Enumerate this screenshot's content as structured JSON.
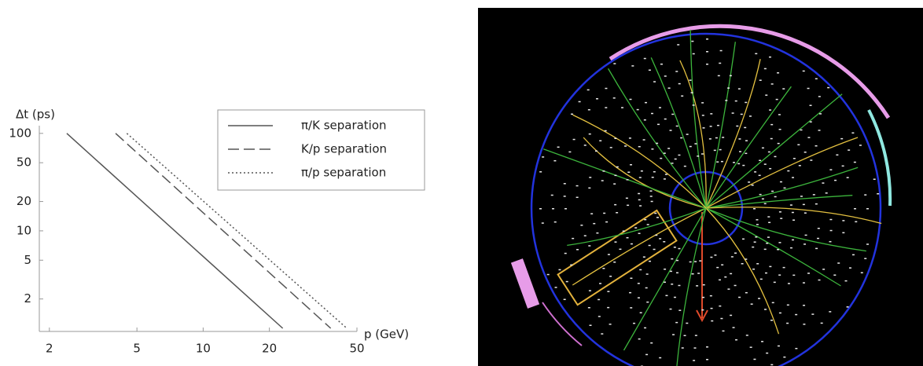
{
  "chart_data": {
    "type": "line",
    "xlabel": "p (GeV)",
    "ylabel": "Δt (ps)",
    "xscale": "log",
    "yscale": "log",
    "xlim": [
      1.8,
      50
    ],
    "ylim": [
      1,
      120
    ],
    "xticks": [
      2,
      5,
      10,
      20,
      50
    ],
    "yticks": [
      2,
      5,
      10,
      20,
      50,
      100
    ],
    "grid": false,
    "legend": "upper right",
    "series": [
      {
        "name": "π/K separation",
        "color": "#555555",
        "dash": "solid",
        "x": [
          2.4,
          23
        ],
        "values": [
          100,
          1
        ]
      },
      {
        "name": "K/p separation",
        "color": "#555555",
        "dash": "dashed",
        "x": [
          4,
          38
        ],
        "values": [
          100,
          1
        ]
      },
      {
        "name": "π/p separation",
        "color": "#555555",
        "dash": "dotted",
        "x": [
          4.5,
          45
        ],
        "values": [
          100,
          1
        ]
      }
    ]
  }
}
